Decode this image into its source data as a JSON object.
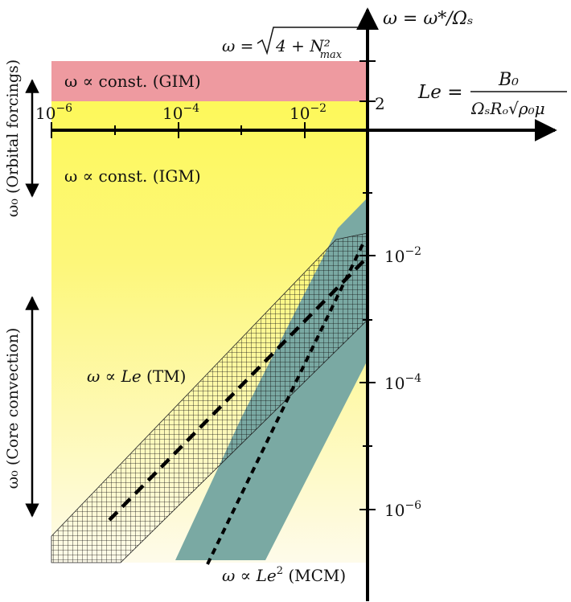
{
  "colors": {
    "gim_band": "#ee9aa0",
    "igm_top": "#fdf85a",
    "igm_bottom": "#fefbe6",
    "mcm_band": "#7aa9a3",
    "hatch": "#111111",
    "axis": "#000000"
  },
  "axes": {
    "x_axis_label": "Le =",
    "x_axis_numerator": "B₀",
    "x_axis_denominator": "ΩₛRₒ√ρ₀μ",
    "y_axis_label": "ω = ω*/Ωₛ",
    "x_ticks": [
      {
        "base": "10",
        "exp": "−6"
      },
      {
        "base": "10",
        "exp": "−4"
      },
      {
        "base": "10",
        "exp": "−2"
      }
    ],
    "y_ticks": [
      {
        "base": "10",
        "exp": "−2"
      },
      {
        "base": "10",
        "exp": "−4"
      },
      {
        "base": "10",
        "exp": "−6"
      }
    ],
    "y_mark_2": "2",
    "y_mark_sqrt_prefix": "ω =",
    "y_mark_sqrt_body": "4 + N²",
    "y_mark_sqrt_sub": "max"
  },
  "regimes": {
    "gim_label": "ω ∝ const. (GIM)",
    "igm_label": "ω ∝ const. (IGM)",
    "tm_label_prefix": "ω ∝",
    "tm_label_var": "Le",
    "tm_label_suffix": "(TM)",
    "mcm_label_prefix": "ω ∝",
    "mcm_label_var": "Le",
    "mcm_label_exp": "2",
    "mcm_label_suffix": "(MCM)"
  },
  "side_labels": {
    "orbital": "ω₀ (Orbital forcings)",
    "core": "ω₀ (Core convection)"
  }
}
